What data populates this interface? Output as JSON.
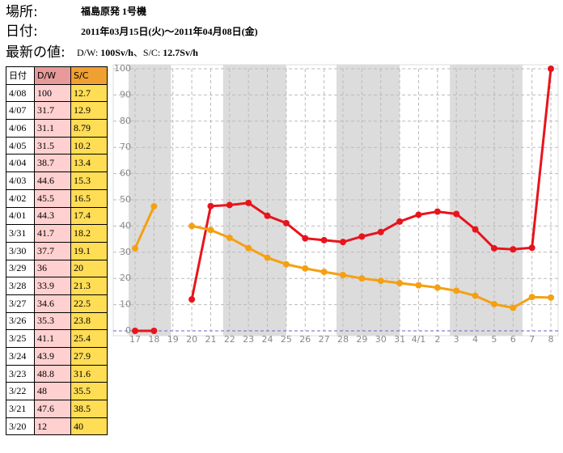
{
  "header": {
    "location_label": "場所:",
    "location": "福島原発 1号機",
    "date_label": "日付:",
    "date": "2011年03月15日(火)〜2011年04月08日(金)",
    "latest_label": "最新の値:",
    "latest_dw_label": "D/W:",
    "latest_dw": "100Sv/h",
    "latest_sep": "、S/C:",
    "latest_sc": "12.7Sv/h"
  },
  "table": {
    "columns": [
      "日付",
      "D/W",
      "S/C"
    ],
    "rows": [
      [
        "4/08",
        100,
        12.7
      ],
      [
        "4/07",
        31.7,
        12.9
      ],
      [
        "4/06",
        31.1,
        8.79
      ],
      [
        "4/05",
        31.5,
        10.2
      ],
      [
        "4/04",
        38.7,
        13.4
      ],
      [
        "4/03",
        44.6,
        15.3
      ],
      [
        "4/02",
        45.5,
        16.5
      ],
      [
        "4/01",
        44.3,
        17.4
      ],
      [
        "3/31",
        41.7,
        18.2
      ],
      [
        "3/30",
        37.7,
        19.1
      ],
      [
        "3/29",
        36,
        20
      ],
      [
        "3/28",
        33.9,
        21.3
      ],
      [
        "3/27",
        34.6,
        22.5
      ],
      [
        "3/26",
        35.3,
        23.8
      ],
      [
        "3/25",
        41.1,
        25.4
      ],
      [
        "3/24",
        43.9,
        27.9
      ],
      [
        "3/23",
        48.8,
        31.6
      ],
      [
        "3/22",
        48,
        35.5
      ],
      [
        "3/21",
        47.6,
        38.5
      ],
      [
        "3/20",
        12,
        40
      ]
    ]
  },
  "chart_data": {
    "type": "line",
    "categories": [
      "17",
      "18",
      "19",
      "20",
      "21",
      "22",
      "23",
      "24",
      "25",
      "26",
      "27",
      "28",
      "29",
      "30",
      "31",
      "4/1",
      "2",
      "3",
      "4",
      "5",
      "6",
      "7",
      "8"
    ],
    "series": [
      {
        "name": "D/W",
        "color": "#e8141c",
        "values": [
          0,
          0,
          null,
          12,
          47.6,
          48,
          48.8,
          43.9,
          41.1,
          35.3,
          34.6,
          33.9,
          36,
          37.7,
          41.7,
          44.3,
          45.5,
          44.6,
          38.7,
          31.5,
          31.1,
          31.7,
          100
        ]
      },
      {
        "name": "S/C",
        "color": "#f5a012",
        "values": [
          31.5,
          47.5,
          null,
          40,
          38.5,
          35.5,
          31.6,
          27.9,
          25.4,
          23.8,
          22.5,
          21.3,
          20,
          19.1,
          18.2,
          17.4,
          16.5,
          15.3,
          13.4,
          10.2,
          8.79,
          12.9,
          12.7
        ]
      }
    ],
    "ylim": [
      0,
      100
    ],
    "yticks": [
      0,
      10,
      20,
      30,
      40,
      50,
      60,
      70,
      80,
      90,
      100
    ],
    "grid": true
  }
}
